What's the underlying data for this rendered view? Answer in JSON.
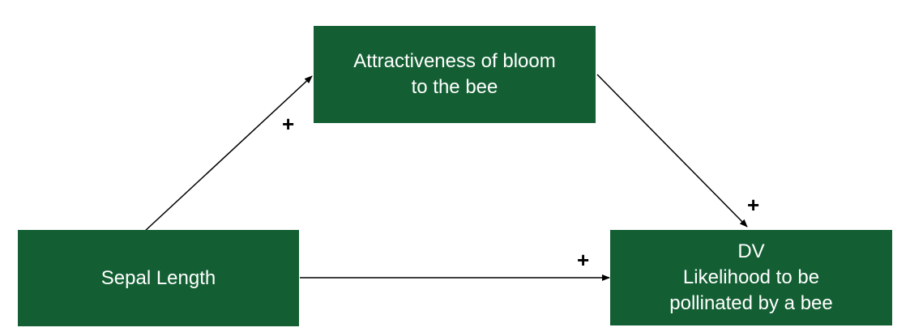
{
  "diagram": {
    "nodes": {
      "mediator": {
        "lines": [
          "Attractiveness of bloom",
          "to the bee"
        ]
      },
      "iv": {
        "lines": [
          "Sepal Length"
        ]
      },
      "dv": {
        "lines": [
          "DV",
          "Likelihood to be",
          "pollinated by a bee"
        ]
      }
    },
    "edges": [
      {
        "from": "iv",
        "to": "mediator",
        "sign": "+"
      },
      {
        "from": "mediator",
        "to": "dv",
        "sign": "+"
      },
      {
        "from": "iv",
        "to": "dv",
        "sign": "+"
      }
    ],
    "colors": {
      "node_fill": "#135f33",
      "node_text": "#ffffff",
      "edge": "#000000"
    }
  }
}
